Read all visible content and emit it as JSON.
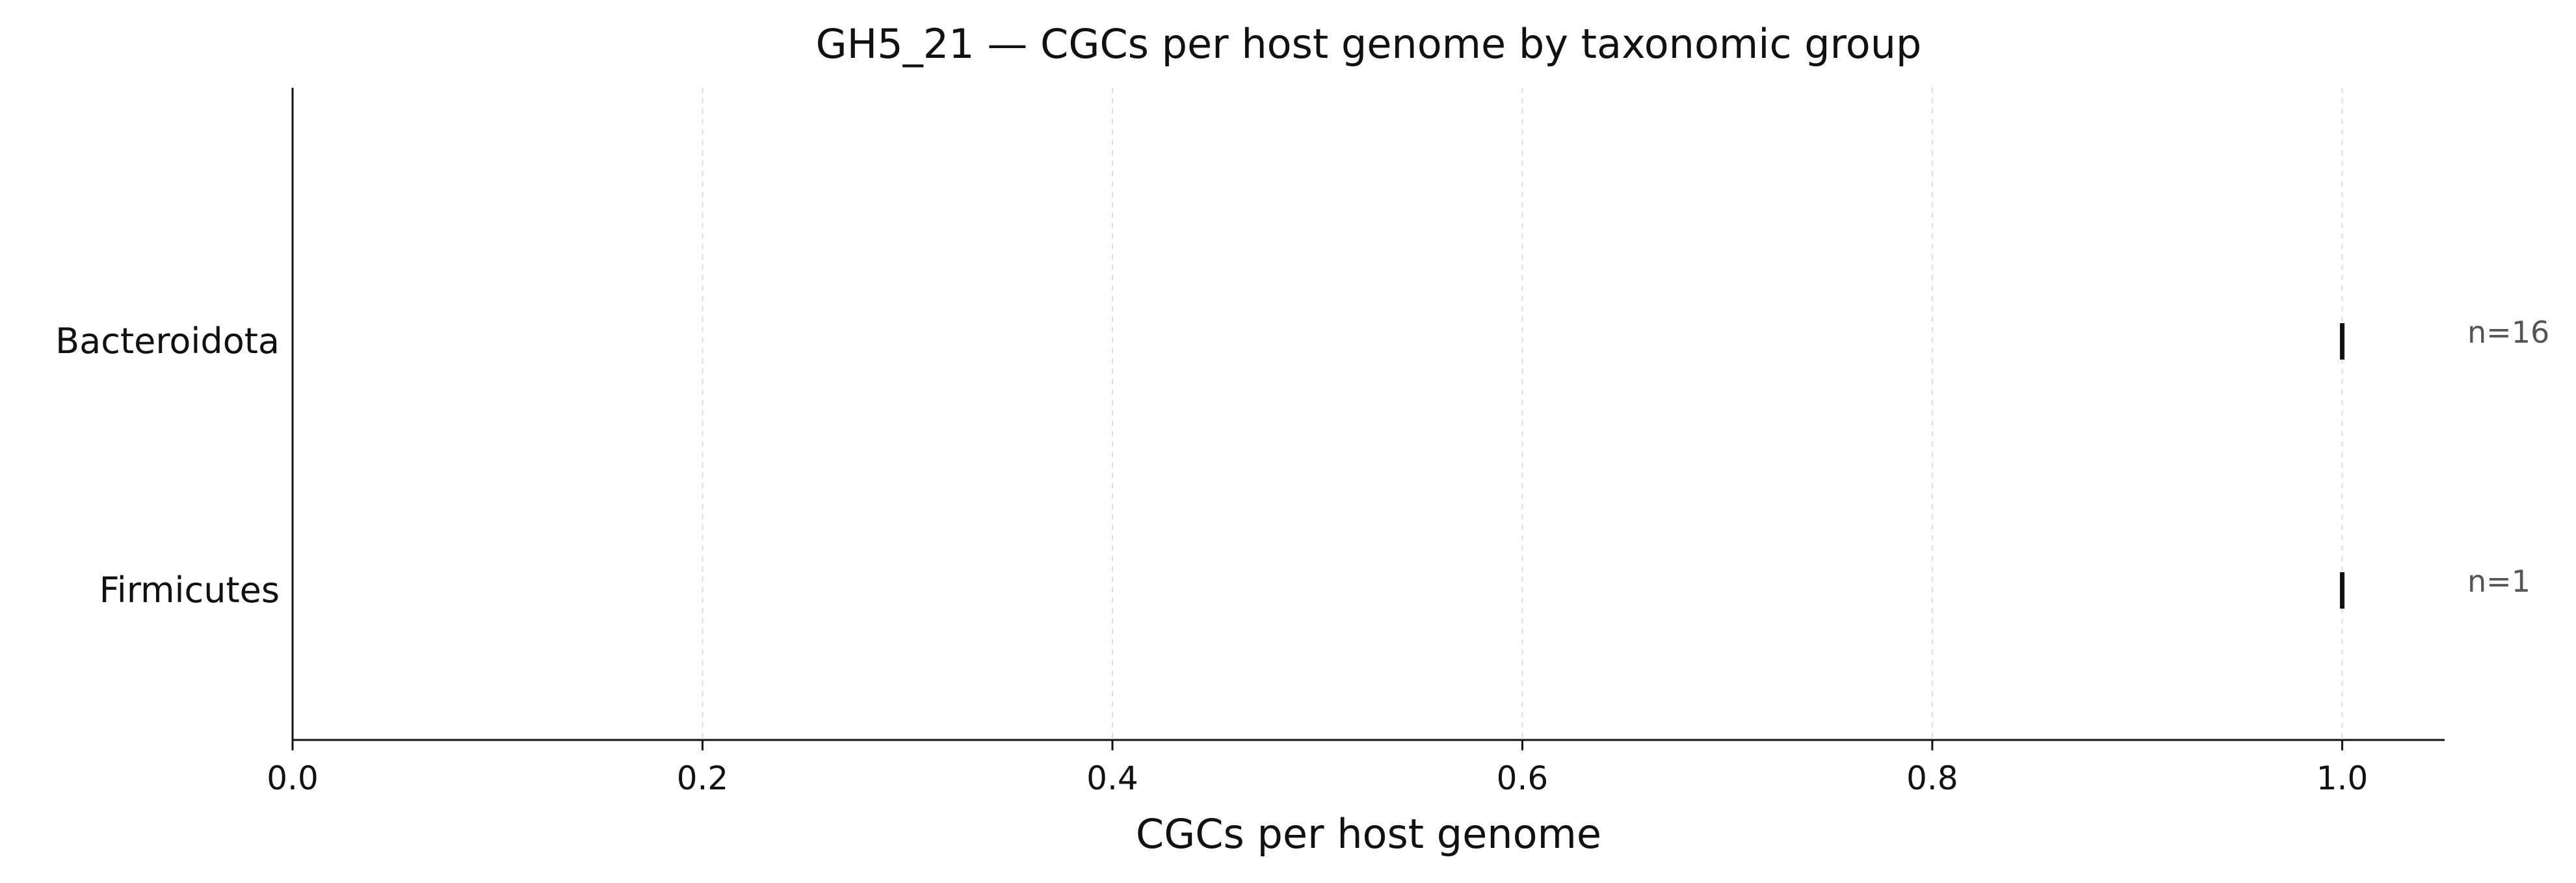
{
  "chart_data": {
    "type": "strip",
    "title": "GH5_21 — CGCs per host genome by taxonomic group",
    "xlabel": "CGCs per host genome",
    "ylabel": "",
    "xlim": [
      0.0,
      1.05
    ],
    "xticks": [
      0.0,
      0.2,
      0.4,
      0.6,
      0.8,
      1.0
    ],
    "xtick_labels": [
      "0.0",
      "0.2",
      "0.4",
      "0.6",
      "0.8",
      "1.0"
    ],
    "grid": "vertical-dashed",
    "legend": "none",
    "categories": [
      "Bacteroidota",
      "Firmicutes"
    ],
    "series": [
      {
        "category": "Bacteroidota",
        "values": [
          1.0
        ],
        "n_label": "n=16"
      },
      {
        "category": "Firmicutes",
        "values": [
          1.0
        ],
        "n_label": "n=1"
      }
    ],
    "colors": {
      "marker": "#111111",
      "grid": "#dddddd",
      "axis": "#111111",
      "annotation": "#555555"
    }
  }
}
